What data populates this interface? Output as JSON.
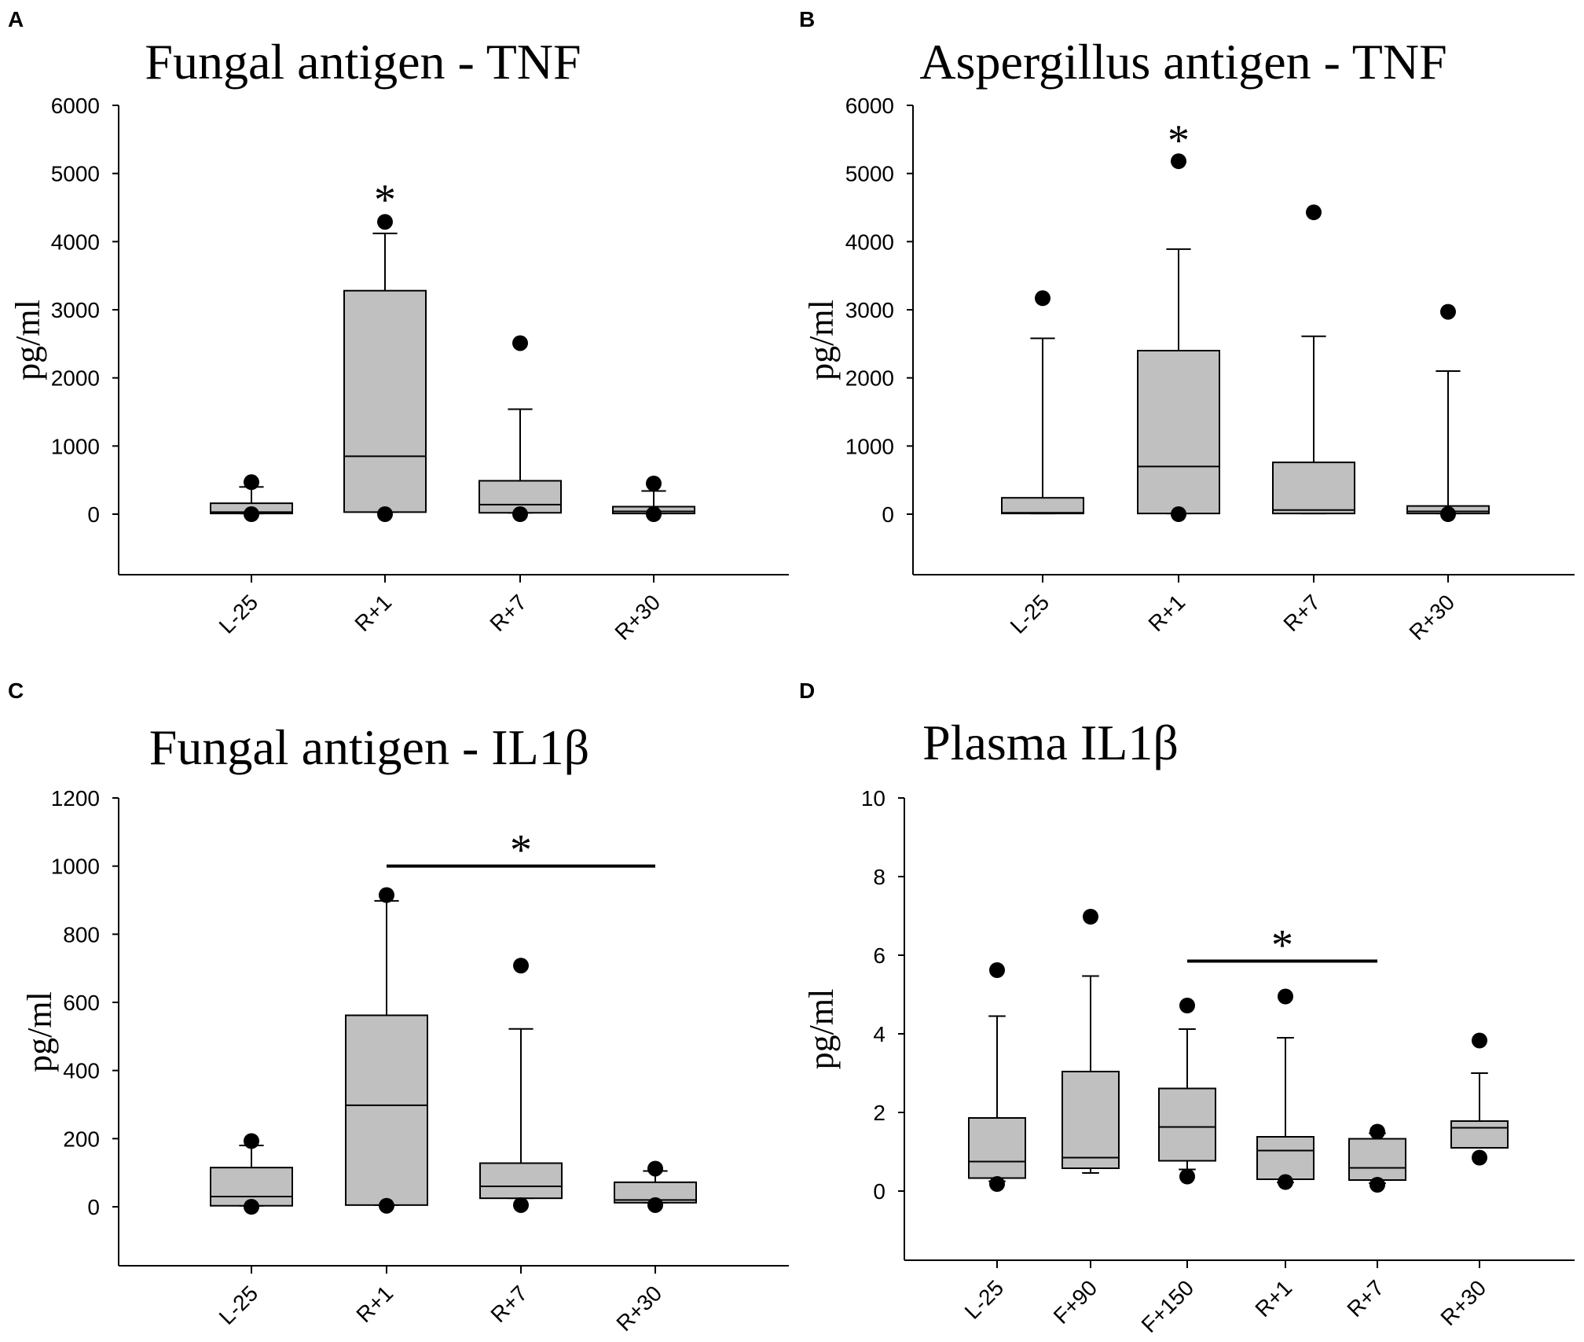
{
  "chart_data": [
    {
      "panel": "A",
      "type": "box",
      "title": "Fungal antigen - TNF",
      "ylabel": "pg/ml",
      "ylim": [
        -900,
        6000
      ],
      "yticks": [
        0,
        1000,
        2000,
        3000,
        4000,
        5000,
        6000
      ],
      "categories": [
        "L-25",
        "R+1",
        "R+7",
        "R+30"
      ],
      "boxes": [
        {
          "q1": 10,
          "median": 30,
          "q3": 160,
          "whisker_low": 10,
          "whisker_high": 400,
          "outliers": [
            0,
            470
          ]
        },
        {
          "q1": 30,
          "median": 850,
          "q3": 3280,
          "whisker_low": 30,
          "whisker_high": 4120,
          "outliers": [
            0,
            4290
          ]
        },
        {
          "q1": 20,
          "median": 140,
          "q3": 490,
          "whisker_low": 20,
          "whisker_high": 1540,
          "outliers": [
            0,
            2510
          ]
        },
        {
          "q1": 10,
          "median": 40,
          "q3": 110,
          "whisker_low": 10,
          "whisker_high": 340,
          "outliers": [
            0,
            450
          ]
        }
      ],
      "annotations": [
        {
          "text": "*",
          "category": "R+1",
          "y": 4750
        }
      ]
    },
    {
      "panel": "B",
      "type": "box",
      "title": "Aspergillus antigen - TNF",
      "ylabel": "pg/ml",
      "ylim": [
        -900,
        6000
      ],
      "yticks": [
        0,
        1000,
        2000,
        3000,
        4000,
        5000,
        6000
      ],
      "categories": [
        "L-25",
        "R+1",
        "R+7",
        "R+30"
      ],
      "boxes": [
        {
          "q1": 10,
          "median": 20,
          "q3": 240,
          "whisker_low": 10,
          "whisker_high": 2580,
          "outliers": [
            3170
          ]
        },
        {
          "q1": 10,
          "median": 700,
          "q3": 2400,
          "whisker_low": 10,
          "whisker_high": 3890,
          "outliers": [
            0,
            5180
          ]
        },
        {
          "q1": 10,
          "median": 60,
          "q3": 760,
          "whisker_low": 10,
          "whisker_high": 2610,
          "outliers": [
            4430
          ]
        },
        {
          "q1": 10,
          "median": 40,
          "q3": 120,
          "whisker_low": 10,
          "whisker_high": 2100,
          "outliers": [
            0,
            2970
          ]
        }
      ],
      "annotations": [
        {
          "text": "*",
          "category": "R+1",
          "y": 5620
        }
      ]
    },
    {
      "panel": "C",
      "type": "box",
      "title": "Fungal antigen - IL1β",
      "ylabel": "pg/ml",
      "ylim": [
        -180,
        1200
      ],
      "yticks": [
        0,
        200,
        400,
        600,
        800,
        1000,
        1200
      ],
      "categories": [
        "L-25",
        "R+1",
        "R+7",
        "R+30"
      ],
      "boxes": [
        {
          "q1": 3,
          "median": 30,
          "q3": 115,
          "whisker_low": 3,
          "whisker_high": 180,
          "outliers": [
            0,
            193
          ]
        },
        {
          "q1": 5,
          "median": 298,
          "q3": 562,
          "whisker_low": 5,
          "whisker_high": 898,
          "outliers": [
            3,
            915
          ]
        },
        {
          "q1": 25,
          "median": 60,
          "q3": 128,
          "whisker_low": 25,
          "whisker_high": 522,
          "outliers": [
            5,
            708
          ]
        },
        {
          "q1": 12,
          "median": 20,
          "q3": 72,
          "whisker_low": 12,
          "whisker_high": 105,
          "outliers": [
            5,
            112
          ]
        }
      ],
      "annotations": [
        {
          "text": "*",
          "from": "R+1",
          "to": "R+30",
          "y": 1000
        }
      ]
    },
    {
      "panel": "D",
      "type": "box",
      "title": "Plasma IL1β",
      "ylabel": "pg/ml",
      "ylim": [
        -1.8,
        10
      ],
      "yticks": [
        0,
        2,
        4,
        6,
        8,
        10
      ],
      "categories": [
        "L-25",
        "F+90",
        "F+150",
        "R+1",
        "R+7",
        "R+30"
      ],
      "boxes": [
        {
          "q1": 0.33,
          "median": 0.75,
          "q3": 1.86,
          "whisker_low": 0.25,
          "whisker_high": 4.45,
          "outliers": [
            0.18,
            5.62
          ]
        },
        {
          "q1": 0.58,
          "median": 0.85,
          "q3": 3.04,
          "whisker_low": 0.46,
          "whisker_high": 5.47,
          "outliers": [
            6.98
          ]
        },
        {
          "q1": 0.77,
          "median": 1.63,
          "q3": 2.61,
          "whisker_low": 0.55,
          "whisker_high": 4.12,
          "outliers": [
            0.37,
            4.72
          ]
        },
        {
          "q1": 0.3,
          "median": 1.03,
          "q3": 1.38,
          "whisker_low": 0.22,
          "whisker_high": 3.9,
          "outliers": [
            0.23,
            4.95
          ]
        },
        {
          "q1": 0.28,
          "median": 0.59,
          "q3": 1.33,
          "whisker_low": 0.2,
          "whisker_high": 1.47,
          "outliers": [
            0.16,
            1.51
          ]
        },
        {
          "q1": 1.1,
          "median": 1.61,
          "q3": 1.78,
          "whisker_low": 1.1,
          "whisker_high": 3.0,
          "outliers": [
            0.85,
            3.83
          ]
        }
      ],
      "annotations": [
        {
          "text": "*",
          "from": "F+150",
          "to": "R+7",
          "y": 5.85
        }
      ]
    }
  ]
}
